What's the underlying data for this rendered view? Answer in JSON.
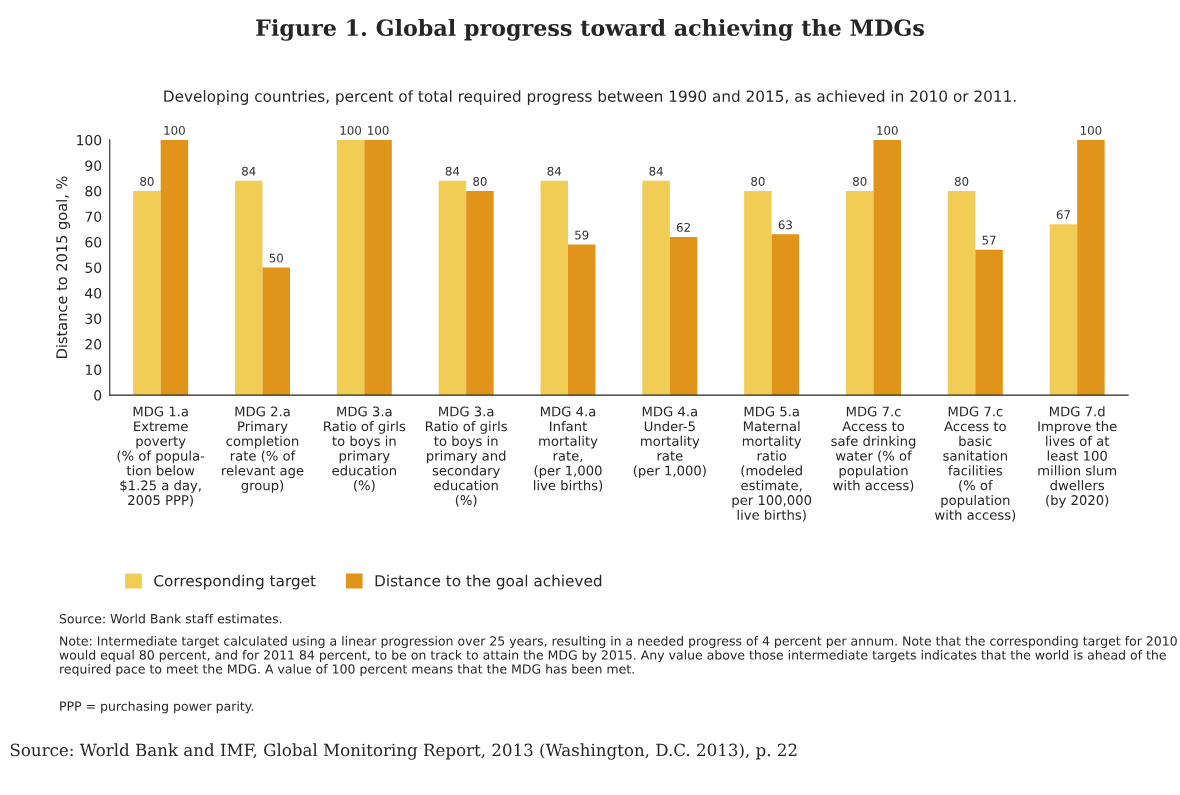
{
  "chart_data": {
    "type": "bar",
    "title": "Figure 1. Global progress toward achieving the MDGs",
    "subtitle": "Developing countries, percent of total required progress between 1990 and 2015, as achieved in 2010 or 2011.",
    "ylabel": "Distance to 2015 goal, %",
    "categories": [
      "MDG 1.a\nExtreme\npoverty\n(% of popula-\ntion below\n$1.25 a day,\n2005 PPP)",
      "MDG 2.a\nPrimary\ncompletion\nrate (% of\nrelevant age\ngroup)",
      "MDG 3.a\nRatio of girls\nto boys in\nprimary\neducation\n(%)",
      "MDG 3.a\nRatio of girls\nto boys in\nprimary and\nsecondary\neducation\n(%)",
      "MDG 4.a\nInfant\nmortality\nrate,\n(per 1,000\nlive births)",
      "MDG 4.a\nUnder-5\nmortality\nrate\n(per 1,000)",
      "MDG 5.a\nMaternal\nmortality\nratio\n(modeled\nestimate,\nper 100,000\nlive births)",
      "MDG 7.c\nAccess to\nsafe drinking\nwater (% of\npopulation\nwith access)",
      "MDG 7.c\nAccess to\nbasic\nsanitation\nfacilities\n(% of\npopulation\nwith access)",
      "MDG 7.d\nImprove the\nlives of at\nleast 100\nmillion slum\ndwellers\n(by 2020)"
    ],
    "series": [
      {
        "name": "Corresponding target",
        "color": "#f2cd56",
        "values": [
          80,
          84,
          100,
          84,
          84,
          84,
          80,
          80,
          80,
          67
        ]
      },
      {
        "name": "Distance to the goal achieved",
        "color": "#e09419",
        "values": [
          100,
          50,
          100,
          80,
          59,
          62,
          63,
          100,
          57,
          100
        ]
      }
    ],
    "ylim": [
      0,
      100
    ],
    "yticks": [
      0,
      10,
      20,
      30,
      40,
      50,
      60,
      70,
      80,
      90,
      100
    ],
    "data_labels": true,
    "grid": false,
    "legend": "bottom left",
    "annotations": [
      "Source: World Bank staff estimates.",
      "Note: Intermediate target calculated using a linear progression over 25 years, resulting in a needed progress of 4 percent per annum. Note that the corresponding target for 2010 would equal 80 percent, and for 2011 84 percent, to be on track to attain the MDG by 2015. Any value above those intermediate targets indicates that the world is ahead of the required pace to meet the MDG. A value of 100 percent means that the MDG has been met.",
      "PPP = purchasing power parity.",
      "Source: World Bank and IMF, Global Monitoring Report, 2013 (Washington, D.C. 2013), p. 22"
    ]
  }
}
